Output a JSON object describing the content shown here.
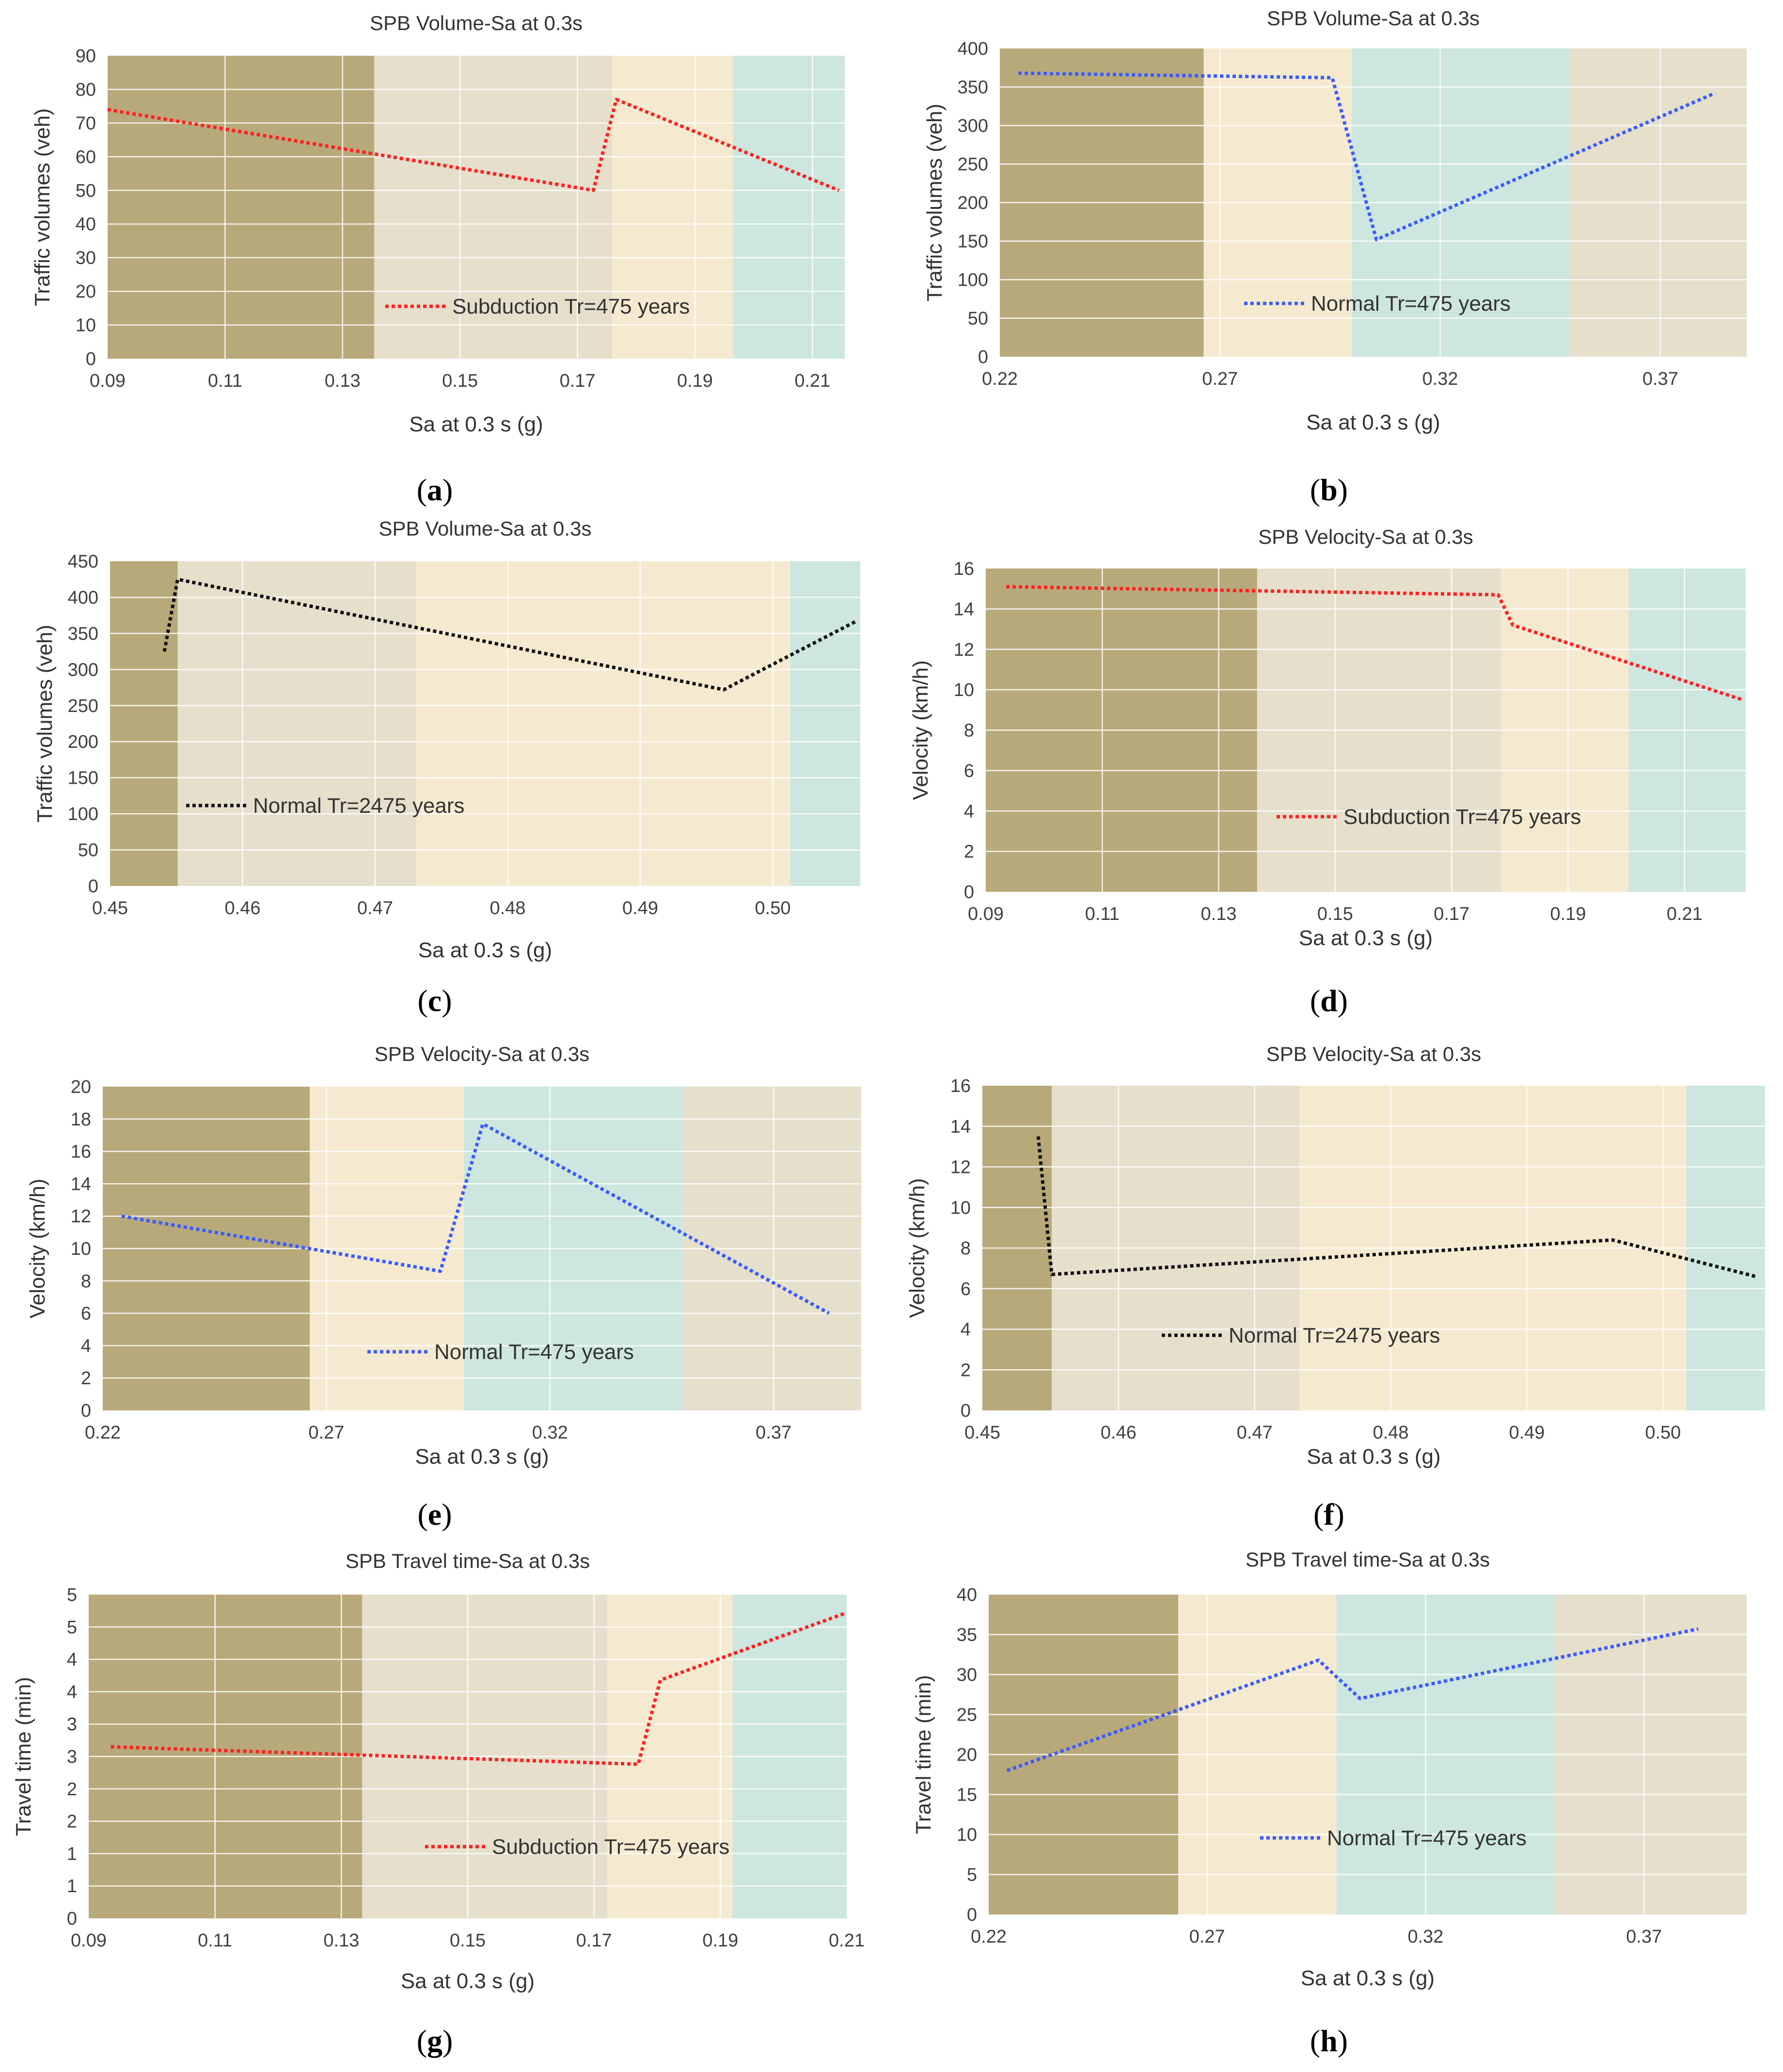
{
  "colors": {
    "band_dark": "#b8a97a",
    "band_grey": "#e5dfcc",
    "band_yellow": "#f5ead0",
    "band_teal": "#cde6e0",
    "red": "#ff2020",
    "blue": "#3b5bff",
    "black": "#111111",
    "axis_text": "#404040"
  },
  "chart_data": [
    {
      "id": "a",
      "caption_letter": "a",
      "type": "line",
      "title": "SPB Volume-Sa at 0.3s",
      "xlabel": "Sa at 0.3 s (g)",
      "ylabel": "Traffic volumes (veh)",
      "xlim": [
        0.09,
        0.2155
      ],
      "ylim": [
        0,
        90
      ],
      "xticks": [
        "0.09",
        "0.11",
        "0.13",
        "0.15",
        "0.17",
        "0.19",
        "0.21"
      ],
      "yticks": [
        "0",
        "10",
        "20",
        "30",
        "40",
        "50",
        "60",
        "70",
        "80",
        "90"
      ],
      "grid": true,
      "bands": [
        {
          "from": 0.09,
          "to": 0.1354,
          "color": "band_dark"
        },
        {
          "from": 0.1354,
          "to": 0.1759,
          "color": "band_grey"
        },
        {
          "from": 0.1759,
          "to": 0.1965,
          "color": "band_yellow"
        },
        {
          "from": 0.1965,
          "to": 0.2155,
          "color": "band_teal"
        }
      ],
      "series": [
        {
          "name": "Subduction Tr=475 years",
          "color": "red",
          "x": [
            0.09,
            0.1727,
            0.1766,
            0.2145
          ],
          "y": [
            74,
            50,
            77,
            50
          ]
        }
      ],
      "legend_position": "center-bottom"
    },
    {
      "id": "b",
      "caption_letter": "b",
      "type": "line",
      "title": "SPB Volume-Sa at 0.3s",
      "xlabel": "Sa at 0.3 s (g)",
      "ylabel": "Traffic volumes (veh)",
      "xlim": [
        0.22,
        0.3896
      ],
      "ylim": [
        0,
        400
      ],
      "xticks": [
        "0.22",
        "0.27",
        "0.32",
        "0.37"
      ],
      "yticks": [
        "0",
        "50",
        "100",
        "150",
        "200",
        "250",
        "300",
        "350",
        "400"
      ],
      "grid": true,
      "bands": [
        {
          "from": 0.22,
          "to": 0.2663,
          "color": "band_dark"
        },
        {
          "from": 0.2663,
          "to": 0.2999,
          "color": "band_yellow"
        },
        {
          "from": 0.2999,
          "to": 0.3493,
          "color": "band_teal"
        },
        {
          "from": 0.3493,
          "to": 0.3896,
          "color": "band_grey"
        }
      ],
      "series": [
        {
          "name": "Normal Tr=475 years",
          "color": "blue",
          "x": [
            0.2242,
            0.2955,
            0.3055,
            0.3824
          ],
          "y": [
            368,
            362,
            152,
            342
          ]
        }
      ],
      "legend_position": "center-bottom"
    },
    {
      "id": "c",
      "caption_letter": "c",
      "type": "line",
      "title": "SPB Volume-Sa at 0.3s",
      "xlabel": "Sa at 0.3 s (g)",
      "ylabel": "Traffic volumes (veh)",
      "xlim": [
        0.45,
        0.5066
      ],
      "ylim": [
        0,
        450
      ],
      "xticks": [
        "0.45",
        "0.46",
        "0.47",
        "0.48",
        "0.49",
        "0.50"
      ],
      "yticks": [
        "0",
        "50",
        "100",
        "150",
        "200",
        "250",
        "300",
        "350",
        "400",
        "450"
      ],
      "grid": true,
      "bands": [
        {
          "from": 0.45,
          "to": 0.4551,
          "color": "band_dark"
        },
        {
          "from": 0.4551,
          "to": 0.4731,
          "color": "band_grey"
        },
        {
          "from": 0.4731,
          "to": 0.5013,
          "color": "band_yellow"
        },
        {
          "from": 0.5013,
          "to": 0.5066,
          "color": "band_teal"
        }
      ],
      "series": [
        {
          "name": "Normal Tr=2475 years",
          "color": "black",
          "x": [
            0.4541,
            0.4551,
            0.4963,
            0.5063
          ],
          "y": [
            325,
            425,
            272,
            367
          ]
        }
      ],
      "legend_position": "left-bottom"
    },
    {
      "id": "d",
      "caption_letter": "d",
      "type": "line",
      "title": "SPB Velocity-Sa at 0.3s",
      "xlabel": "Sa at 0.3 s (g)",
      "ylabel": "Velocity (km/h)",
      "xlim": [
        0.09,
        0.2205
      ],
      "ylim": [
        0,
        16
      ],
      "xticks": [
        "0.09",
        "0.11",
        "0.13",
        "0.15",
        "0.17",
        "0.19",
        "0.21"
      ],
      "yticks": [
        "0",
        "2",
        "4",
        "6",
        "8",
        "10",
        "12",
        "14",
        "16"
      ],
      "grid": true,
      "bands": [
        {
          "from": 0.09,
          "to": 0.1366,
          "color": "band_dark"
        },
        {
          "from": 0.1366,
          "to": 0.1785,
          "color": "band_grey"
        },
        {
          "from": 0.1785,
          "to": 0.2004,
          "color": "band_yellow"
        },
        {
          "from": 0.2004,
          "to": 0.2205,
          "color": "band_teal"
        }
      ],
      "series": [
        {
          "name": "Subduction Tr=475 years",
          "color": "red",
          "x": [
            0.0935,
            0.178,
            0.1805,
            0.22
          ],
          "y": [
            15.1,
            14.7,
            13.2,
            9.5
          ]
        }
      ],
      "legend_position": "center-bottom"
    },
    {
      "id": "e",
      "caption_letter": "e",
      "type": "line",
      "title": "SPB Velocity-Sa at 0.3s",
      "xlabel": "Sa at 0.3 s (g)",
      "ylabel": "Velocity (km/h)",
      "xlim": [
        0.22,
        0.3896
      ],
      "ylim": [
        0,
        20
      ],
      "xticks": [
        "0.22",
        "0.27",
        "0.32",
        "0.37"
      ],
      "yticks": [
        "0",
        "2",
        "4",
        "6",
        "8",
        "10",
        "12",
        "14",
        "16",
        "18",
        "20"
      ],
      "grid": true,
      "bands": [
        {
          "from": 0.22,
          "to": 0.2663,
          "color": "band_dark"
        },
        {
          "from": 0.2663,
          "to": 0.3007,
          "color": "band_yellow"
        },
        {
          "from": 0.3007,
          "to": 0.3498,
          "color": "band_teal"
        },
        {
          "from": 0.3498,
          "to": 0.3896,
          "color": "band_grey"
        }
      ],
      "series": [
        {
          "name": "Normal Tr=475 years",
          "color": "blue",
          "x": [
            0.2242,
            0.2955,
            0.305,
            0.3824
          ],
          "y": [
            12,
            8.6,
            17.7,
            6
          ]
        }
      ],
      "legend_position": "center-bottom"
    },
    {
      "id": "f",
      "caption_letter": "f",
      "type": "line",
      "title": "SPB Velocity-Sa at 0.3s",
      "xlabel": "Sa at 0.3 s (g)",
      "ylabel": "Velocity (km/h)",
      "xlim": [
        0.45,
        0.5075
      ],
      "ylim": [
        0,
        16
      ],
      "xticks": [
        "0.45",
        "0.46",
        "0.47",
        "0.48",
        "0.49",
        "0.50"
      ],
      "yticks": [
        "0",
        "2",
        "4",
        "6",
        "8",
        "10",
        "12",
        "14",
        "16"
      ],
      "grid": true,
      "bands": [
        {
          "from": 0.45,
          "to": 0.4551,
          "color": "band_dark"
        },
        {
          "from": 0.4551,
          "to": 0.4733,
          "color": "band_grey"
        },
        {
          "from": 0.4733,
          "to": 0.5017,
          "color": "band_yellow"
        },
        {
          "from": 0.5017,
          "to": 0.5075,
          "color": "band_teal"
        }
      ],
      "series": [
        {
          "name": "Normal Tr=2475 years",
          "color": "black",
          "x": [
            0.4541,
            0.4551,
            0.4963,
            0.5068
          ],
          "y": [
            13.5,
            6.7,
            8.4,
            6.6
          ]
        }
      ],
      "legend_position": "center-bottom"
    },
    {
      "id": "g",
      "caption_letter": "g",
      "type": "line",
      "title": "SPB Travel time-Sa at 0.3s",
      "xlabel": "Sa at 0.3 s (g)",
      "ylabel": "Travel time (min)",
      "xlim": [
        0.09,
        0.21
      ],
      "ylim": [
        0,
        5
      ],
      "xticks": [
        "0.09",
        "0.11",
        "0.13",
        "0.15",
        "0.17",
        "0.19",
        "0.21"
      ],
      "yticks": [
        "0",
        "1",
        "1",
        "2",
        "2",
        "3",
        "3",
        "4",
        "4",
        "5",
        "5"
      ],
      "grid": true,
      "bands": [
        {
          "from": 0.09,
          "to": 0.1333,
          "color": "band_dark"
        },
        {
          "from": 0.1333,
          "to": 0.1721,
          "color": "band_grey"
        },
        {
          "from": 0.1721,
          "to": 0.1919,
          "color": "band_yellow"
        },
        {
          "from": 0.1919,
          "to": 0.21,
          "color": "band_teal"
        }
      ],
      "series": [
        {
          "name": "Subduction Tr=475 years",
          "color": "red",
          "x": [
            0.0935,
            0.177,
            0.1805,
            0.21
          ],
          "y": [
            2.65,
            2.38,
            3.68,
            4.72
          ]
        }
      ],
      "legend_position": "center-bottom"
    },
    {
      "id": "h",
      "caption_letter": "h",
      "type": "line",
      "title": "SPB Travel time-Sa at 0.3s",
      "xlabel": "Sa at 0.3 s (g)",
      "ylabel": "Travel time (min)",
      "xlim": [
        0.22,
        0.3935
      ],
      "ylim": [
        0,
        40
      ],
      "xticks": [
        "0.22",
        "0.27",
        "0.32",
        "0.37"
      ],
      "yticks": [
        "0",
        "5",
        "10",
        "15",
        "20",
        "25",
        "30",
        "35",
        "40"
      ],
      "grid": true,
      "bands": [
        {
          "from": 0.22,
          "to": 0.2634,
          "color": "band_dark"
        },
        {
          "from": 0.2634,
          "to": 0.2996,
          "color": "band_yellow"
        },
        {
          "from": 0.2996,
          "to": 0.3495,
          "color": "band_teal"
        },
        {
          "from": 0.3495,
          "to": 0.3935,
          "color": "band_grey"
        }
      ],
      "series": [
        {
          "name": "Normal Tr=475 years",
          "color": "blue",
          "x": [
            0.2242,
            0.2955,
            0.305,
            0.3824
          ],
          "y": [
            18,
            31.8,
            27,
            35.7
          ]
        }
      ],
      "legend_position": "center-bottom"
    }
  ]
}
